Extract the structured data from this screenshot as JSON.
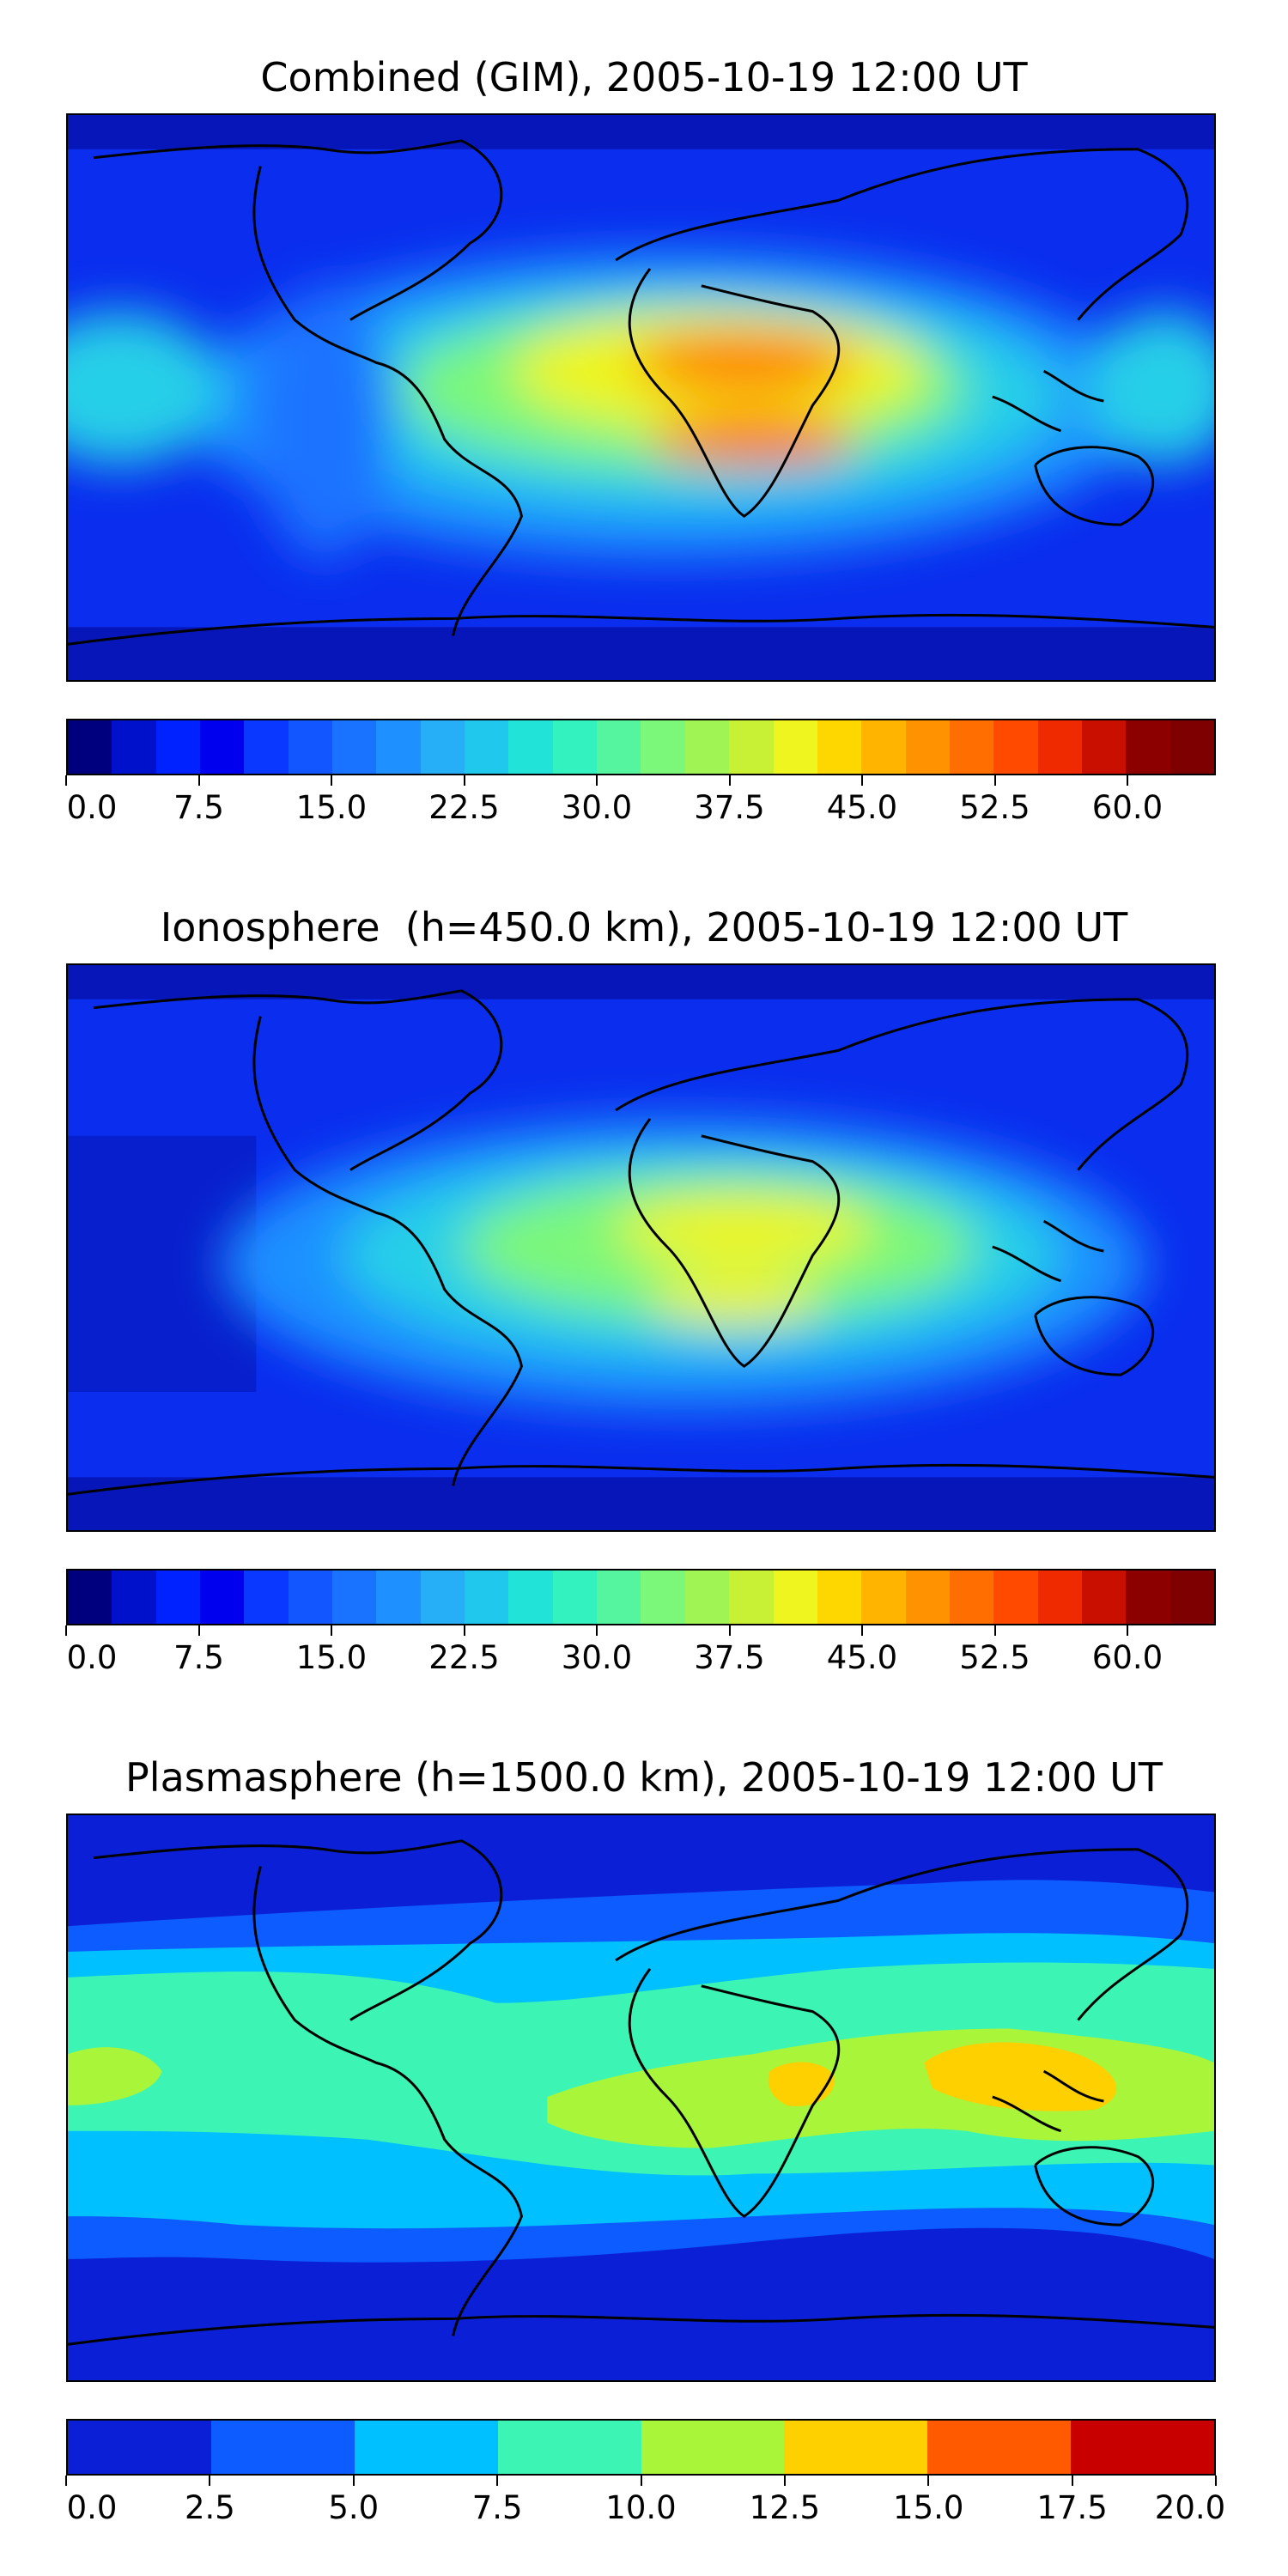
{
  "panels": [
    {
      "title": "Combined (GIM), 2005-10-19 12:00 UT",
      "colorbar": {
        "tick_labels": [
          "0.0",
          "7.5",
          "15.0",
          "22.5",
          "30.0",
          "37.5",
          "45.0",
          "52.5",
          "60.0"
        ],
        "min": 0,
        "max": 65,
        "step": 2.5,
        "colors": [
          "#00007f",
          "#0011cc",
          "#0022ff",
          "#0000ee",
          "#0a38ff",
          "#1256ff",
          "#1a73ff",
          "#1f90ff",
          "#26aef7",
          "#20c8ee",
          "#22e3d8",
          "#33f2c0",
          "#55f5a0",
          "#7bf77a",
          "#a0f555",
          "#c8f034",
          "#eef51f",
          "#ffd700",
          "#ffb400",
          "#ff9200",
          "#ff6e00",
          "#ff4a00",
          "#ef2a00",
          "#c80f00",
          "#8c0000",
          "#7f0000"
        ]
      }
    },
    {
      "title": "Ionosphere  (h=450.0 km), 2005-10-19 12:00 UT",
      "colorbar": {
        "tick_labels": [
          "0.0",
          "7.5",
          "15.0",
          "22.5",
          "30.0",
          "37.5",
          "45.0",
          "52.5",
          "60.0"
        ],
        "min": 0,
        "max": 65,
        "step": 2.5,
        "colors": [
          "#00007f",
          "#0011cc",
          "#0022ff",
          "#0000ee",
          "#0a38ff",
          "#1256ff",
          "#1a73ff",
          "#1f90ff",
          "#26aef7",
          "#20c8ee",
          "#22e3d8",
          "#33f2c0",
          "#55f5a0",
          "#7bf77a",
          "#a0f555",
          "#c8f034",
          "#eef51f",
          "#ffd700",
          "#ffb400",
          "#ff9200",
          "#ff6e00",
          "#ff4a00",
          "#ef2a00",
          "#c80f00",
          "#8c0000",
          "#7f0000"
        ]
      }
    },
    {
      "title": "Plasmasphere (h=1500.0 km), 2005-10-19 12:00 UT",
      "colorbar": {
        "tick_labels": [
          "0.0",
          "2.5",
          "5.0",
          "7.5",
          "10.0",
          "12.5",
          "15.0",
          "17.5",
          "20.0"
        ],
        "min": 0,
        "max": 20,
        "step": 2.5,
        "colors": [
          "#0b1fd6",
          "#0d5cff",
          "#00c0ff",
          "#3cf5b4",
          "#a8f53a",
          "#ffd000",
          "#ff5a00",
          "#c80000"
        ]
      }
    }
  ]
}
